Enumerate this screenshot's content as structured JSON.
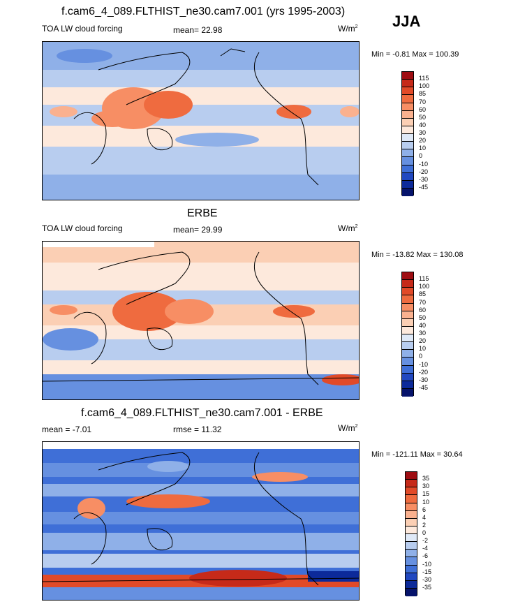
{
  "season": "JJA",
  "panels": [
    {
      "title": "f.cam6_4_089.FLTHIST_ne30.cam7.001 (yrs 1995-2003)",
      "left_label": "TOA LW cloud forcing",
      "center_label": "mean=  22.98",
      "units": "W/m",
      "units_sup": "2",
      "minmax": "Min =  -0.81 Max = 100.39",
      "cb_levels": [
        "115",
        "100",
        "85",
        "70",
        "60",
        "50",
        "40",
        "30",
        "20",
        "10",
        "0",
        "-10",
        "-20",
        "-30",
        "-45"
      ],
      "cb_colors": [
        "#9e0d12",
        "#c62a19",
        "#e14a28",
        "#ef6b3f",
        "#f78e64",
        "#fab18f",
        "#fbcfb4",
        "#fde9dc",
        "#dfe9f7",
        "#b8cdef",
        "#8fb0e8",
        "#6690e0",
        "#3f6fd7",
        "#2148c0",
        "#0c2a9a",
        "#06136b"
      ]
    },
    {
      "title": "ERBE",
      "left_label": "TOA LW cloud forcing",
      "center_label": "mean=  29.99",
      "units": "W/m",
      "units_sup": "2",
      "minmax": "Min = -13.82 Max = 130.08",
      "cb_levels": [
        "115",
        "100",
        "85",
        "70",
        "60",
        "50",
        "40",
        "30",
        "20",
        "10",
        "0",
        "-10",
        "-20",
        "-30",
        "-45"
      ],
      "cb_colors": [
        "#9e0d12",
        "#c62a19",
        "#e14a28",
        "#ef6b3f",
        "#f78e64",
        "#fab18f",
        "#fbcfb4",
        "#fde9dc",
        "#dfe9f7",
        "#b8cdef",
        "#8fb0e8",
        "#6690e0",
        "#3f6fd7",
        "#2148c0",
        "#0c2a9a",
        "#06136b"
      ]
    },
    {
      "title": "f.cam6_4_089.FLTHIST_ne30.cam7.001 - ERBE",
      "left_label": "mean =  -7.01",
      "center_label": "rmse =  11.32",
      "units": "W/m",
      "units_sup": "2",
      "minmax": "Min = -121.11 Max =  30.64",
      "cb_levels": [
        "35",
        "30",
        "15",
        "10",
        "6",
        "4",
        "2",
        "0",
        "-2",
        "-4",
        "-6",
        "-10",
        "-15",
        "-30",
        "-35"
      ],
      "cb_colors": [
        "#9e0d12",
        "#c62a19",
        "#e14a28",
        "#ef6b3f",
        "#f78e64",
        "#fab18f",
        "#fbcfb4",
        "#fde9dc",
        "#dfe9f7",
        "#b8cdef",
        "#8fb0e8",
        "#6690e0",
        "#3f6fd7",
        "#2148c0",
        "#0c2a9a",
        "#06136b"
      ]
    }
  ]
}
